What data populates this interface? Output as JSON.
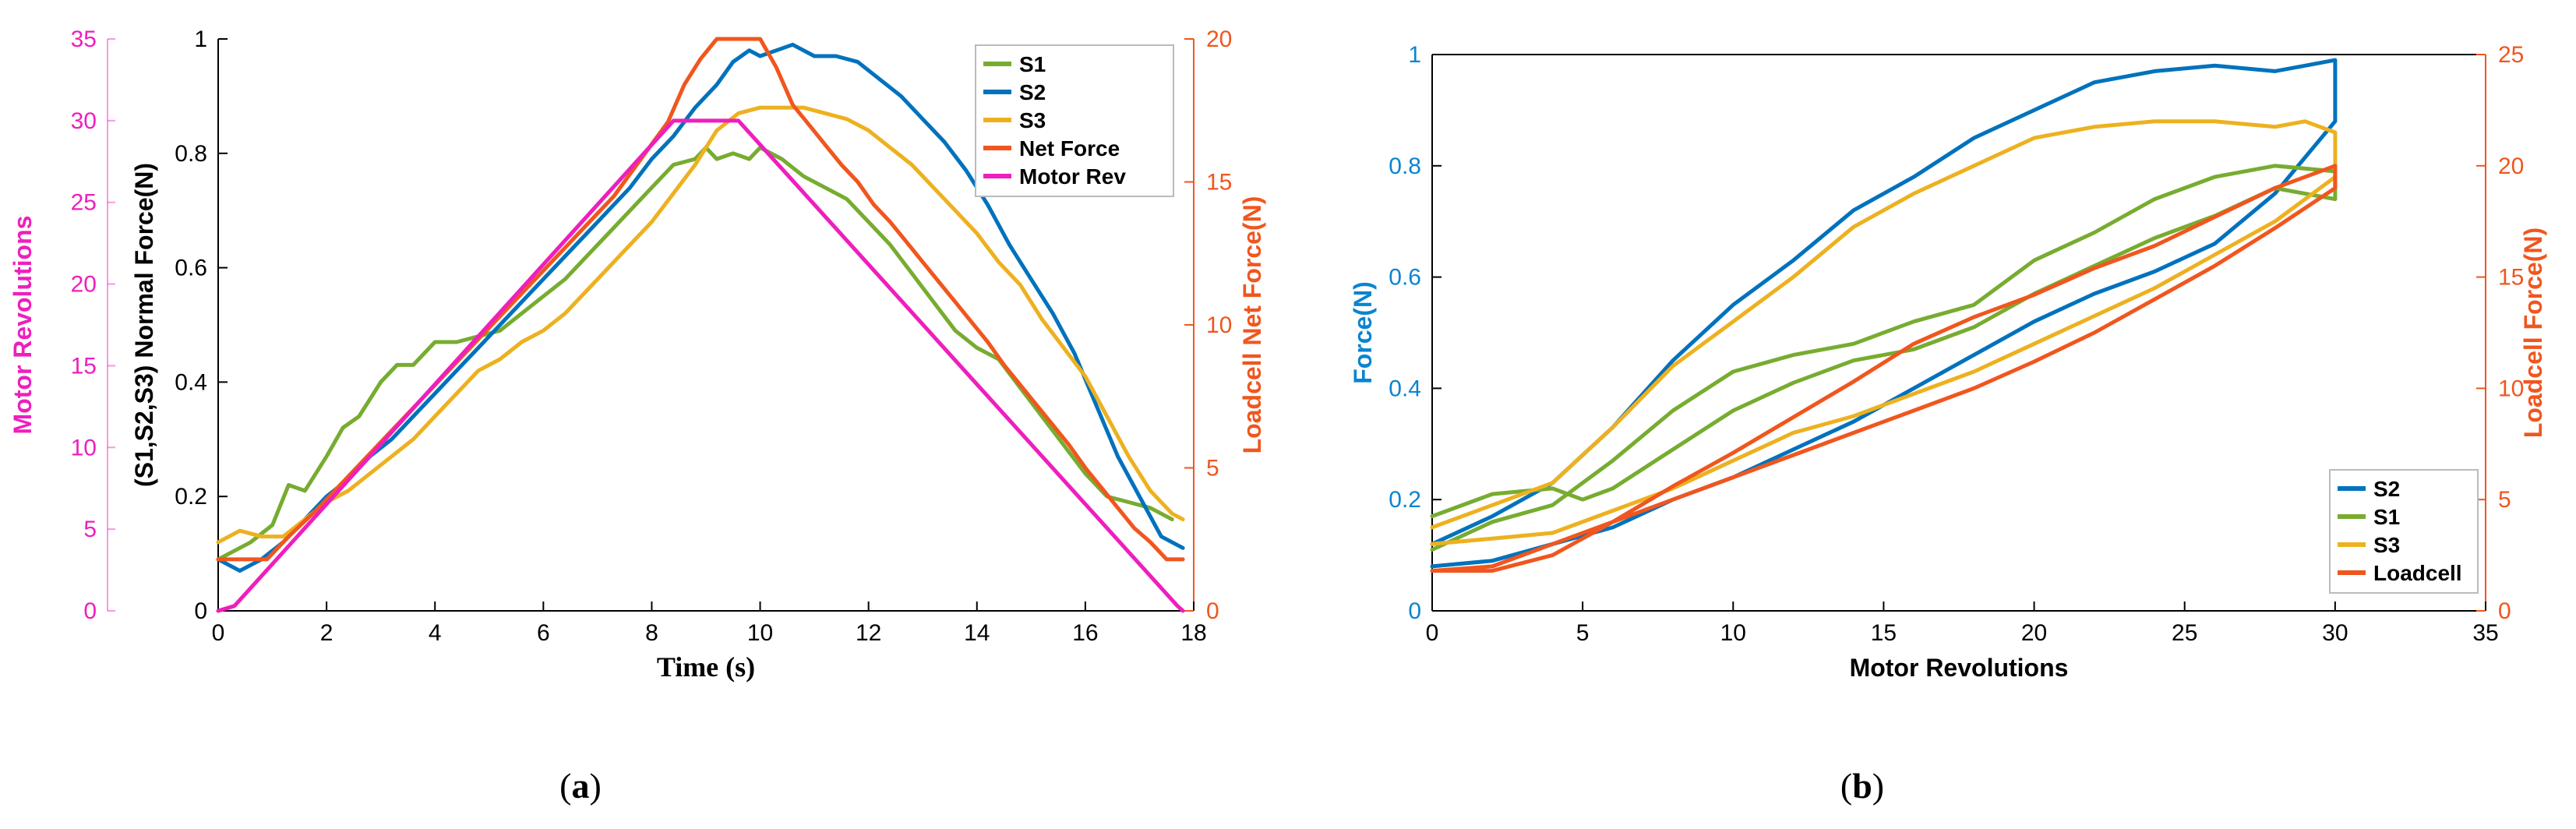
{
  "chart_data": [
    {
      "panel_label": "a",
      "type": "line",
      "xlabel": "Time (s)",
      "ylabel_left": "(S1,S2,S3) Normal Force(N)",
      "ylabel_far_left": "Motor Revolutions",
      "ylabel_right": "Loadcell Net Force(N)",
      "xlim": [
        0,
        18
      ],
      "ylim_left": [
        0,
        1
      ],
      "ylim_far_left": [
        0,
        35
      ],
      "ylim_right": [
        0,
        20
      ],
      "x_ticks": [
        "0",
        "2",
        "4",
        "6",
        "8",
        "10",
        "12",
        "14",
        "16",
        "18"
      ],
      "y_left_ticks": [
        "0",
        "0.2",
        "0.4",
        "0.6",
        "0.8",
        "1"
      ],
      "y_far_left_ticks": [
        "0",
        "5",
        "10",
        "15",
        "20",
        "25",
        "30",
        "35"
      ],
      "y_right_ticks": [
        "0",
        "5",
        "10",
        "15",
        "20"
      ],
      "legend_position": "top-right",
      "series": [
        {
          "name": "S1",
          "color": "#77ac30",
          "axis": "left",
          "x": [
            0,
            0.6,
            1.0,
            1.3,
            1.6,
            2.0,
            2.3,
            2.6,
            3.0,
            3.3,
            3.6,
            4.0,
            4.4,
            4.8,
            5.2,
            5.6,
            6.0,
            6.4,
            6.8,
            7.2,
            7.6,
            8.0,
            8.4,
            8.8,
            9.0,
            9.2,
            9.5,
            9.8,
            10.0,
            10.4,
            10.8,
            11.2,
            11.6,
            12.0,
            12.4,
            12.8,
            13.2,
            13.6,
            14.0,
            14.4,
            14.8,
            15.2,
            15.6,
            16.0,
            16.4,
            16.8,
            17.2,
            17.6
          ],
          "values": [
            0.09,
            0.12,
            0.15,
            0.22,
            0.21,
            0.27,
            0.32,
            0.34,
            0.4,
            0.43,
            0.43,
            0.47,
            0.47,
            0.48,
            0.49,
            0.52,
            0.55,
            0.58,
            0.62,
            0.66,
            0.7,
            0.74,
            0.78,
            0.79,
            0.81,
            0.79,
            0.8,
            0.79,
            0.81,
            0.79,
            0.76,
            0.74,
            0.72,
            0.68,
            0.64,
            0.59,
            0.54,
            0.49,
            0.46,
            0.44,
            0.39,
            0.34,
            0.29,
            0.24,
            0.2,
            0.19,
            0.18,
            0.16
          ]
        },
        {
          "name": "S2",
          "color": "#0072bd",
          "axis": "left",
          "x": [
            0,
            0.4,
            0.8,
            1.2,
            1.6,
            2.0,
            2.4,
            2.8,
            3.2,
            3.6,
            4.0,
            4.4,
            4.8,
            5.2,
            5.6,
            6.0,
            6.4,
            6.8,
            7.2,
            7.6,
            8.0,
            8.4,
            8.8,
            9.2,
            9.5,
            9.8,
            10.0,
            10.3,
            10.6,
            11.0,
            11.4,
            11.8,
            12.2,
            12.6,
            13.0,
            13.4,
            13.8,
            14.2,
            14.6,
            15.0,
            15.4,
            15.8,
            16.2,
            16.6,
            17.0,
            17.4,
            17.8
          ],
          "values": [
            0.09,
            0.07,
            0.09,
            0.12,
            0.16,
            0.2,
            0.23,
            0.27,
            0.3,
            0.34,
            0.38,
            0.42,
            0.46,
            0.5,
            0.54,
            0.58,
            0.62,
            0.66,
            0.7,
            0.74,
            0.79,
            0.83,
            0.88,
            0.92,
            0.96,
            0.98,
            0.97,
            0.98,
            0.99,
            0.97,
            0.97,
            0.96,
            0.93,
            0.9,
            0.86,
            0.82,
            0.77,
            0.71,
            0.64,
            0.58,
            0.52,
            0.45,
            0.36,
            0.27,
            0.2,
            0.13,
            0.11
          ]
        },
        {
          "name": "S3",
          "color": "#edb120",
          "axis": "left",
          "x": [
            0,
            0.4,
            0.8,
            1.2,
            1.6,
            2.0,
            2.4,
            2.8,
            3.2,
            3.6,
            4.0,
            4.4,
            4.8,
            5.2,
            5.6,
            6.0,
            6.4,
            6.8,
            7.2,
            7.6,
            8.0,
            8.4,
            8.8,
            9.2,
            9.6,
            10.0,
            10.4,
            10.8,
            11.2,
            11.6,
            12.0,
            12.4,
            12.8,
            13.2,
            13.6,
            14.0,
            14.4,
            14.8,
            15.2,
            15.6,
            16.0,
            16.4,
            16.8,
            17.2,
            17.6,
            17.8
          ],
          "values": [
            0.12,
            0.14,
            0.13,
            0.13,
            0.16,
            0.19,
            0.21,
            0.24,
            0.27,
            0.3,
            0.34,
            0.38,
            0.42,
            0.44,
            0.47,
            0.49,
            0.52,
            0.56,
            0.6,
            0.64,
            0.68,
            0.73,
            0.78,
            0.84,
            0.87,
            0.88,
            0.88,
            0.88,
            0.87,
            0.86,
            0.84,
            0.81,
            0.78,
            0.74,
            0.7,
            0.66,
            0.61,
            0.57,
            0.51,
            0.46,
            0.41,
            0.34,
            0.27,
            0.21,
            0.17,
            0.16
          ]
        },
        {
          "name": "Net Force",
          "color": "#f0561e",
          "axis": "right",
          "x": [
            0,
            0.9,
            1.3,
            1.8,
            2.3,
            2.8,
            3.3,
            3.8,
            4.3,
            4.8,
            5.3,
            5.8,
            6.3,
            6.8,
            7.3,
            7.8,
            8.3,
            8.6,
            8.9,
            9.2,
            9.5,
            10.0,
            10.3,
            10.6,
            10.9,
            11.2,
            11.5,
            11.8,
            12.1,
            12.4,
            12.7,
            13.0,
            13.3,
            13.6,
            13.9,
            14.2,
            14.5,
            14.8,
            15.1,
            15.4,
            15.7,
            16.0,
            16.3,
            16.6,
            16.9,
            17.2,
            17.5,
            17.8
          ],
          "values": [
            1.8,
            1.8,
            2.6,
            3.5,
            4.5,
            5.5,
            6.5,
            7.5,
            8.5,
            9.5,
            10.5,
            11.5,
            12.5,
            13.5,
            14.5,
            15.8,
            17.1,
            18.4,
            19.3,
            20.0,
            20.0,
            20.0,
            19.0,
            17.7,
            17.0,
            16.3,
            15.6,
            15.0,
            14.2,
            13.6,
            12.9,
            12.2,
            11.5,
            10.8,
            10.1,
            9.4,
            8.6,
            7.9,
            7.2,
            6.5,
            5.8,
            5.0,
            4.3,
            3.6,
            2.9,
            2.4,
            1.8,
            1.8
          ]
        },
        {
          "name": "Motor Rev",
          "color": "#ee1fbd",
          "axis": "far_left",
          "x": [
            0,
            0.3,
            8.4,
            9.6,
            17.7,
            17.8
          ],
          "values": [
            0,
            0.3,
            30,
            30,
            0.3,
            0
          ]
        }
      ]
    },
    {
      "panel_label": "b",
      "type": "line",
      "xlabel": "Motor Revolutions",
      "ylabel_left": "Force(N)",
      "ylabel_right": "Loadcell Force(N)",
      "xlim": [
        0,
        35
      ],
      "ylim_left": [
        0,
        1
      ],
      "ylim_right": [
        0,
        25
      ],
      "x_ticks": [
        "0",
        "5",
        "10",
        "15",
        "20",
        "25",
        "30",
        "35"
      ],
      "y_left_ticks": [
        "0",
        "0.2",
        "0.4",
        "0.6",
        "0.8",
        "1"
      ],
      "y_right_ticks": [
        "0",
        "5",
        "10",
        "15",
        "20",
        "25"
      ],
      "legend_position": "bottom-right",
      "series": [
        {
          "name": "S2",
          "color": "#0072bd",
          "axis": "left",
          "x": [
            0,
            2,
            4,
            6,
            8,
            10,
            12,
            14,
            16,
            18,
            20,
            22,
            24,
            26,
            28,
            29,
            30,
            30,
            28,
            26,
            24,
            22,
            20,
            18,
            16,
            14,
            12,
            10,
            8,
            6,
            4,
            2,
            0
          ],
          "values": [
            0.12,
            0.17,
            0.23,
            0.33,
            0.45,
            0.55,
            0.63,
            0.72,
            0.78,
            0.85,
            0.9,
            0.95,
            0.97,
            0.98,
            0.97,
            0.98,
            0.99,
            0.88,
            0.75,
            0.66,
            0.61,
            0.57,
            0.52,
            0.46,
            0.4,
            0.34,
            0.29,
            0.24,
            0.2,
            0.15,
            0.12,
            0.09,
            0.08
          ]
        },
        {
          "name": "S1",
          "color": "#77ac30",
          "axis": "left",
          "x": [
            0,
            2,
            4,
            5,
            6,
            8,
            10,
            12,
            14,
            16,
            18,
            20,
            22,
            24,
            26,
            28,
            30,
            30,
            28,
            26,
            24,
            22,
            20,
            18,
            16,
            14,
            12,
            10,
            8,
            6,
            4,
            2,
            0
          ],
          "values": [
            0.17,
            0.21,
            0.22,
            0.2,
            0.22,
            0.29,
            0.36,
            0.41,
            0.45,
            0.47,
            0.51,
            0.57,
            0.62,
            0.67,
            0.71,
            0.76,
            0.74,
            0.79,
            0.8,
            0.78,
            0.74,
            0.68,
            0.63,
            0.55,
            0.52,
            0.48,
            0.46,
            0.43,
            0.36,
            0.27,
            0.19,
            0.16,
            0.11
          ]
        },
        {
          "name": "S3",
          "color": "#edb120",
          "axis": "left",
          "x": [
            0,
            2,
            4,
            6,
            8,
            10,
            12,
            14,
            16,
            18,
            20,
            22,
            24,
            26,
            28,
            29,
            30,
            30,
            28,
            26,
            24,
            22,
            20,
            18,
            16,
            14,
            12,
            10,
            8,
            6,
            4,
            2,
            0
          ],
          "values": [
            0.15,
            0.19,
            0.23,
            0.33,
            0.44,
            0.52,
            0.6,
            0.69,
            0.75,
            0.8,
            0.85,
            0.87,
            0.88,
            0.88,
            0.87,
            0.88,
            0.86,
            0.78,
            0.7,
            0.64,
            0.58,
            0.53,
            0.48,
            0.43,
            0.39,
            0.35,
            0.32,
            0.27,
            0.22,
            0.18,
            0.14,
            0.13,
            0.12
          ]
        },
        {
          "name": "Loadcell",
          "color": "#f0561e",
          "axis": "right",
          "x": [
            0,
            2,
            4,
            6,
            8,
            10,
            12,
            14,
            16,
            18,
            20,
            22,
            24,
            26,
            28,
            30,
            30,
            28,
            26,
            24,
            22,
            20,
            18,
            16,
            14,
            12,
            10,
            8,
            6,
            4,
            2,
            0
          ],
          "values": [
            1.8,
            1.8,
            2.5,
            4.0,
            5.6,
            7.1,
            8.7,
            10.3,
            12.0,
            13.2,
            14.2,
            15.4,
            16.4,
            17.7,
            19.0,
            20.0,
            19.0,
            17.2,
            15.5,
            14.0,
            12.5,
            11.2,
            10.0,
            9.0,
            8.0,
            7.0,
            6.0,
            5.0,
            4.0,
            3.0,
            2.0,
            1.8
          ]
        }
      ]
    }
  ],
  "colors": {
    "axis": "#000000",
    "gridline_pink_axis": "#ee1fbd",
    "left_axis_b": "#0a84d0",
    "right_axis": "#f0561e"
  }
}
